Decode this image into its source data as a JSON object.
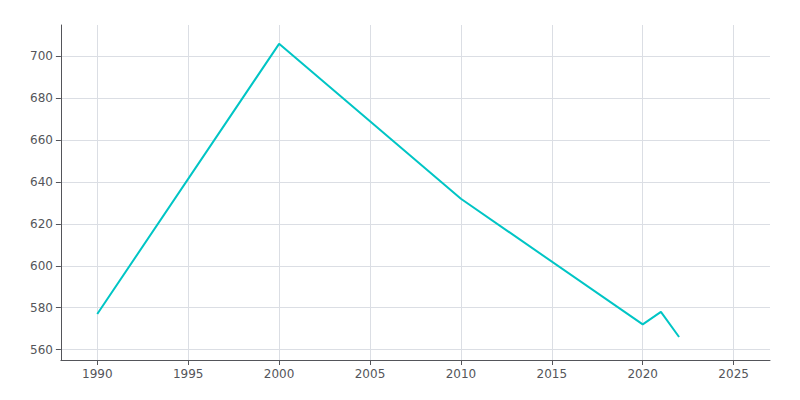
{
  "chart_data": {
    "type": "line",
    "x": [
      1990,
      2000,
      2010,
      2020,
      2021,
      2022
    ],
    "values": [
      577,
      706,
      632,
      572,
      578,
      566
    ],
    "color": "#00C5C5",
    "xlim": [
      1988,
      2027
    ],
    "ylim": [
      555,
      715
    ],
    "xticks": [
      1990,
      1995,
      2000,
      2005,
      2010,
      2015,
      2020,
      2025
    ],
    "yticks": [
      560,
      580,
      600,
      620,
      640,
      660,
      680,
      700
    ],
    "grid": true
  }
}
